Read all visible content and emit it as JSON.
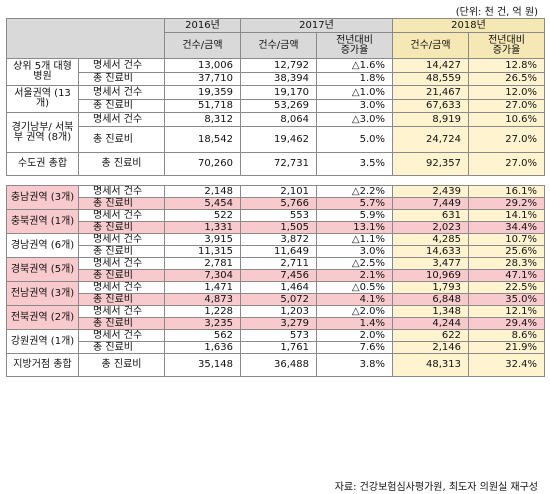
{
  "unit_note": "(단위: 천 건, 억 원)",
  "source_note": "자료: 건강보험심사평가원, 최도자 의원실 재구성",
  "header": {
    "y2016": "2016년",
    "y2017": "2017년",
    "y2018": "2018년",
    "count_amount": "건수/금액",
    "yoy_line1": "전년대비",
    "yoy_line2": "증가율"
  },
  "items": {
    "claims": "명세서 건수",
    "total": "총 진료비"
  },
  "regions": [
    {
      "name": "상위 5개 대형병원",
      "rows": [
        {
          "v16": "13,006",
          "v17": "12,792",
          "r17": "△1.6%",
          "v18": "14,427",
          "r18": "12.8%"
        },
        {
          "v16": "37,710",
          "v17": "38,394",
          "r17": "1.8%",
          "v18": "48,559",
          "r18": "26.5%"
        }
      ]
    },
    {
      "name": "서울권역 (13개)",
      "rows": [
        {
          "v16": "19,359",
          "v17": "19,170",
          "r17": "△1.0%",
          "v18": "21,467",
          "r18": "12.0%"
        },
        {
          "v16": "51,718",
          "v17": "53,269",
          "r17": "3.0%",
          "v18": "67,633",
          "r18": "27.0%"
        }
      ]
    },
    {
      "name": "경기남부/ 서북부 권역 (8개)",
      "rows": [
        {
          "v16": "8,312",
          "v17": "8,064",
          "r17": "△3.0%",
          "v18": "8,919",
          "r18": "10.6%"
        },
        {
          "v16": "18,542",
          "v17": "19,462",
          "r17": "5.0%",
          "v18": "24,724",
          "r18": "27.0%"
        }
      ]
    },
    {
      "name": "수도권 총합",
      "rows": [
        {
          "v16": "70,260",
          "v17": "72,731",
          "r17": "3.5%",
          "v18": "92,357",
          "r18": "27.0%"
        }
      ]
    },
    {
      "name": "충남권역 (3개)",
      "rows": [
        {
          "v16": "2,148",
          "v17": "2,101",
          "r17": "△2.2%",
          "v18": "2,439",
          "r18": "16.1%"
        },
        {
          "v16": "5,454",
          "v17": "5,766",
          "r17": "5.7%",
          "v18": "7,449",
          "r18": "29.2%"
        }
      ]
    },
    {
      "name": "충북권역 (1개)",
      "rows": [
        {
          "v16": "522",
          "v17": "553",
          "r17": "5.9%",
          "v18": "631",
          "r18": "14.1%"
        },
        {
          "v16": "1,331",
          "v17": "1,505",
          "r17": "13.1%",
          "v18": "2,023",
          "r18": "34.4%"
        }
      ]
    },
    {
      "name": "경남권역 (6개)",
      "rows": [
        {
          "v16": "3,915",
          "v17": "3,872",
          "r17": "△1.1%",
          "v18": "4,285",
          "r18": "10.7%"
        },
        {
          "v16": "11,315",
          "v17": "11,649",
          "r17": "3.0%",
          "v18": "14,633",
          "r18": "25.6%"
        }
      ]
    },
    {
      "name": "경북권역 (5개)",
      "rows": [
        {
          "v16": "2,781",
          "v17": "2,711",
          "r17": "△2.5%",
          "v18": "3,477",
          "r18": "28.3%"
        },
        {
          "v16": "7,304",
          "v17": "7,456",
          "r17": "2.1%",
          "v18": "10,969",
          "r18": "47.1%"
        }
      ]
    },
    {
      "name": "전남권역 (3개)",
      "rows": [
        {
          "v16": "1,471",
          "v17": "1,464",
          "r17": "△0.5%",
          "v18": "1,793",
          "r18": "22.5%"
        },
        {
          "v16": "4,873",
          "v17": "5,072",
          "r17": "4.1%",
          "v18": "6,848",
          "r18": "35.0%"
        }
      ]
    },
    {
      "name": "전북권역 (2개)",
      "rows": [
        {
          "v16": "1,228",
          "v17": "1,203",
          "r17": "△2.0%",
          "v18": "1,348",
          "r18": "12.1%"
        },
        {
          "v16": "3,235",
          "v17": "3,279",
          "r17": "1.4%",
          "v18": "4,244",
          "r18": "29.4%"
        }
      ]
    },
    {
      "name": "강원권역 (1개)",
      "rows": [
        {
          "v16": "562",
          "v17": "573",
          "r17": "2.0%",
          "v18": "622",
          "r18": "8.6%"
        },
        {
          "v16": "1,636",
          "v17": "1,761",
          "r17": "7.6%",
          "v18": "2,146",
          "r18": "21.9%"
        }
      ]
    },
    {
      "name": "지방거점 총합",
      "rows": [
        {
          "v16": "35,148",
          "v17": "36,488",
          "r17": "3.8%",
          "v18": "48,313",
          "r18": "32.4%"
        }
      ]
    }
  ]
}
